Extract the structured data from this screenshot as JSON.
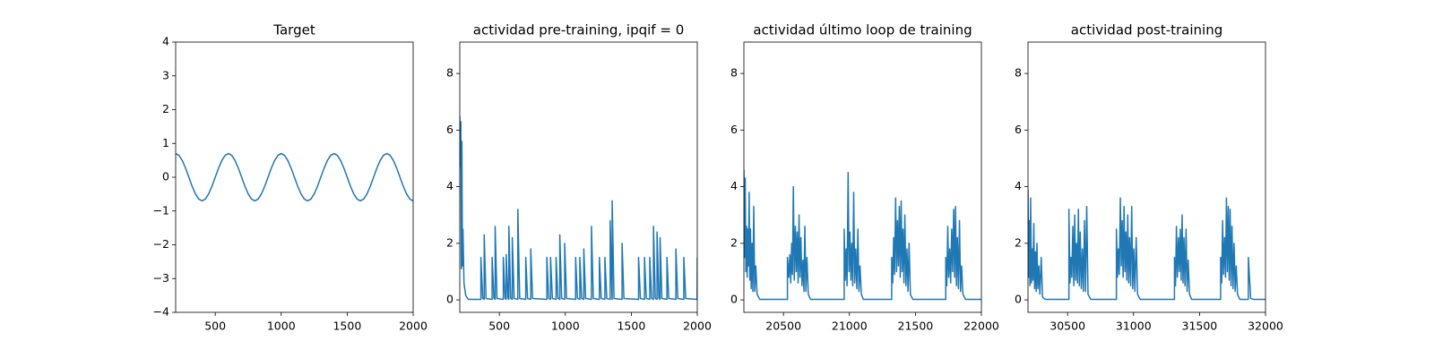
{
  "chart_data": [
    {
      "type": "line",
      "title": "Target",
      "x": [
        200,
        225,
        250,
        275,
        300,
        325,
        350,
        375,
        400,
        425,
        450,
        475,
        500,
        525,
        550,
        575,
        600,
        625,
        650,
        675,
        700,
        725,
        750,
        775,
        800,
        825,
        850,
        875,
        900,
        925,
        950,
        975,
        1000,
        1025,
        1050,
        1075,
        1100,
        1125,
        1150,
        1175,
        1200,
        1225,
        1250,
        1275,
        1300,
        1325,
        1350,
        1375,
        1400,
        1425,
        1450,
        1475,
        1500,
        1525,
        1550,
        1575,
        1600,
        1625,
        1650,
        1675,
        1700,
        1725,
        1750,
        1775,
        1800,
        1825,
        1850,
        1875,
        1900,
        1925,
        1950,
        1975,
        2000
      ],
      "series": [
        {
          "color": "#1f77b4",
          "values": [
            0.7,
            0.647,
            0.495,
            0.268,
            0,
            -0.268,
            -0.495,
            -0.647,
            -0.7,
            -0.647,
            -0.495,
            -0.268,
            0,
            0.268,
            0.495,
            0.647,
            0.7,
            0.647,
            0.495,
            0.268,
            0,
            -0.268,
            -0.495,
            -0.647,
            -0.7,
            -0.647,
            -0.495,
            -0.268,
            0,
            0.268,
            0.495,
            0.647,
            0.7,
            0.647,
            0.495,
            0.268,
            0,
            -0.268,
            -0.495,
            -0.647,
            -0.7,
            -0.647,
            -0.495,
            -0.268,
            0,
            0.268,
            0.495,
            0.647,
            0.7,
            0.647,
            0.495,
            0.268,
            0,
            -0.268,
            -0.495,
            -0.647,
            -0.7,
            -0.647,
            -0.495,
            -0.268,
            0,
            0.268,
            0.495,
            0.647,
            0.7,
            0.647,
            0.495,
            0.268,
            0,
            -0.268,
            -0.495,
            -0.647,
            -0.7
          ]
        }
      ],
      "xlim": [
        200,
        2000
      ],
      "ylim": [
        -4,
        4
      ],
      "xticks": [
        500,
        1000,
        1500,
        2000
      ],
      "yticks": [
        {
          "value": -4,
          "label": "−4"
        },
        {
          "value": -3,
          "label": "−3"
        },
        {
          "value": -2,
          "label": "−2"
        },
        {
          "value": -1,
          "label": "−1"
        },
        0,
        1,
        2,
        3,
        4
      ]
    },
    {
      "type": "line",
      "title": "actividad pre-training, ipqif = 0",
      "x": [
        200,
        204,
        208,
        212,
        216,
        220,
        224,
        232,
        245,
        265,
        360,
        360,
        374,
        385,
        385,
        399,
        445,
        445,
        459,
        468,
        468,
        482,
        530,
        530,
        544,
        552,
        552,
        566,
        572,
        572,
        586,
        598,
        598,
        612,
        640,
        640,
        654,
        700,
        700,
        714,
        738,
        738,
        752,
        860,
        860,
        874,
        888,
        888,
        902,
        930,
        930,
        944,
        958,
        958,
        972,
        995,
        995,
        1009,
        1078,
        1078,
        1092,
        1110,
        1110,
        1124,
        1140,
        1140,
        1154,
        1198,
        1198,
        1212,
        1258,
        1258,
        1272,
        1300,
        1300,
        1314,
        1340,
        1340,
        1354,
        1355,
        1355,
        1369,
        1430,
        1430,
        1444,
        1555,
        1555,
        1569,
        1600,
        1600,
        1614,
        1640,
        1640,
        1654,
        1668,
        1668,
        1682,
        1695,
        1695,
        1709,
        1718,
        1718,
        1732,
        1770,
        1770,
        1784,
        1838,
        1838,
        1852,
        1898,
        1898,
        1912,
        1999,
        2000
      ],
      "series": [
        {
          "color": "#1f77b4",
          "values": [
            6.5,
            4.7,
            6.3,
            1.1,
            5.6,
            1.2,
            2.5,
            0.6,
            0.15,
            0.02,
            0.02,
            1.5,
            0.05,
            0.02,
            2.3,
            0.05,
            0.02,
            1.5,
            0.05,
            0.02,
            2.6,
            0.05,
            0.02,
            1.5,
            0.05,
            0.02,
            1.6,
            0.05,
            0.02,
            2.6,
            0.05,
            0.02,
            2.2,
            0.05,
            0.02,
            3.2,
            0.05,
            0.02,
            1.5,
            0.05,
            0.02,
            1.8,
            0.05,
            0.02,
            1.5,
            0.05,
            0.02,
            1.5,
            0.05,
            0.02,
            1.5,
            0.05,
            0.02,
            2.3,
            0.05,
            0.02,
            2.0,
            0.05,
            0.02,
            1.5,
            0.05,
            0.02,
            1.5,
            0.05,
            0.02,
            1.8,
            0.05,
            0.02,
            2.6,
            0.05,
            0.02,
            1.5,
            0.05,
            0.02,
            1.5,
            0.05,
            0.02,
            2.8,
            0.05,
            0.02,
            3.5,
            0.05,
            0.02,
            2.0,
            0.05,
            0.02,
            1.5,
            0.05,
            0.02,
            1.5,
            0.05,
            0.02,
            1.5,
            0.05,
            0.02,
            2.6,
            0.05,
            0.02,
            2.4,
            0.05,
            0.02,
            2.2,
            0.05,
            0.02,
            1.5,
            0.05,
            0.02,
            1.8,
            0.05,
            0.02,
            1.5,
            0.05,
            0.02,
            1.5
          ]
        }
      ],
      "xlim": [
        200,
        2000
      ],
      "ylim": [
        -0.44,
        9.11
      ],
      "xticks": [
        500,
        1000,
        1500,
        2000
      ],
      "yticks": [
        0,
        2,
        4,
        6,
        8
      ]
    },
    {
      "type": "line",
      "title": "actividad último loop de training",
      "x": [
        20200,
        20205,
        20210,
        20215,
        20220,
        20225,
        20230,
        20235,
        20240,
        20245,
        20250,
        20255,
        20262,
        20268,
        20275,
        20282,
        20290,
        20300,
        20320,
        20530,
        20530,
        20540,
        20548,
        20555,
        20562,
        20568,
        20575,
        20582,
        20590,
        20597,
        20604,
        20611,
        20618,
        20625,
        20632,
        20640,
        20648,
        20655,
        20662,
        20670,
        20678,
        20688,
        20705,
        20960,
        20960,
        20968,
        20975,
        20982,
        20990,
        20997,
        21004,
        21011,
        21018,
        21025,
        21032,
        21040,
        21048,
        21056,
        21064,
        21072,
        21080,
        21090,
        21105,
        21320,
        21320,
        21328,
        21335,
        21342,
        21350,
        21357,
        21364,
        21371,
        21378,
        21385,
        21392,
        21399,
        21406,
        21413,
        21420,
        21428,
        21436,
        21444,
        21452,
        21462,
        21480,
        21730,
        21730,
        21738,
        21745,
        21752,
        21760,
        21767,
        21775,
        21782,
        21790,
        21797,
        21804,
        21811,
        21818,
        21826,
        21834,
        21842,
        21850,
        21860,
        21880,
        22000
      ],
      "series": [
        {
          "color": "#1f77b4",
          "values": [
            4.6,
            1.5,
            4.3,
            1.0,
            2.6,
            0.8,
            2.5,
            1.2,
            3.8,
            0.7,
            2.5,
            0.4,
            2.0,
            0.3,
            3.3,
            0.3,
            1.2,
            0.2,
            0.02,
            0.02,
            1.5,
            0.8,
            1.6,
            0.6,
            2.0,
            0.9,
            4.0,
            0.7,
            2.6,
            1.0,
            2.4,
            0.6,
            3.0,
            0.8,
            2.2,
            0.5,
            1.4,
            0.3,
            2.6,
            0.3,
            1.5,
            0.2,
            0.02,
            0.02,
            2.5,
            0.7,
            1.8,
            0.5,
            4.5,
            1.0,
            2.4,
            0.7,
            2.0,
            0.5,
            3.8,
            0.6,
            1.8,
            0.4,
            2.5,
            0.3,
            1.2,
            0.2,
            0.02,
            0.02,
            1.5,
            0.6,
            2.2,
            0.9,
            3.6,
            1.0,
            2.8,
            1.2,
            3.3,
            0.8,
            3.5,
            1.0,
            2.5,
            0.6,
            3.0,
            0.5,
            1.8,
            0.3,
            2.0,
            0.2,
            0.02,
            0.02,
            1.5,
            0.5,
            2.6,
            0.8,
            1.8,
            0.6,
            2.5,
            1.0,
            3.2,
            0.8,
            3.3,
            0.5,
            2.2,
            0.4,
            2.8,
            0.3,
            1.2,
            0.2,
            0.02,
            0.02
          ]
        }
      ],
      "xlim": [
        20200,
        22000
      ],
      "ylim": [
        -0.44,
        9.11
      ],
      "xticks": [
        20500,
        21000,
        21500,
        22000
      ],
      "yticks": [
        0,
        2,
        4,
        6,
        8
      ]
    },
    {
      "type": "line",
      "title": "actividad post-training",
      "x": [
        30200,
        30205,
        30210,
        30215,
        30220,
        30226,
        30232,
        30238,
        30244,
        30250,
        30256,
        30262,
        30268,
        30275,
        30282,
        30290,
        30300,
        30310,
        30330,
        30510,
        30510,
        30518,
        30525,
        30532,
        30540,
        30547,
        30554,
        30561,
        30568,
        30575,
        30582,
        30589,
        30596,
        30604,
        30612,
        30620,
        30628,
        30636,
        30645,
        30655,
        30675,
        30870,
        30870,
        30878,
        30885,
        30892,
        30900,
        30907,
        30914,
        30921,
        30928,
        30935,
        30942,
        30949,
        30956,
        30963,
        30970,
        30978,
        30986,
        30994,
        31002,
        31010,
        31020,
        31030,
        31050,
        31310,
        31310,
        31318,
        31325,
        31332,
        31340,
        31347,
        31354,
        31361,
        31368,
        31375,
        31382,
        31390,
        31398,
        31406,
        31414,
        31424,
        31440,
        31660,
        31660,
        31668,
        31675,
        31682,
        31690,
        31697,
        31704,
        31711,
        31718,
        31725,
        31732,
        31739,
        31746,
        31754,
        31762,
        31770,
        31778,
        31788,
        31805,
        31870,
        31870,
        31888,
        31910,
        32000
      ],
      "series": [
        {
          "color": "#1f77b4",
          "values": [
            3.9,
            0.8,
            2.8,
            0.5,
            3.6,
            0.6,
            1.8,
            0.7,
            2.7,
            0.4,
            1.7,
            0.3,
            2.0,
            0.4,
            1.2,
            0.2,
            1.5,
            0.1,
            0.02,
            0.02,
            3.2,
            0.6,
            1.5,
            0.8,
            2.6,
            0.5,
            3.0,
            0.7,
            2.0,
            0.6,
            3.2,
            0.5,
            2.4,
            0.4,
            1.8,
            0.3,
            2.8,
            0.3,
            3.3,
            0.2,
            0.02,
            0.02,
            2.5,
            0.8,
            1.8,
            0.9,
            3.6,
            1.2,
            2.8,
            0.8,
            3.3,
            1.0,
            2.4,
            0.7,
            3.0,
            0.6,
            2.2,
            0.5,
            3.3,
            0.4,
            1.8,
            0.3,
            2.2,
            0.2,
            0.02,
            0.02,
            1.5,
            0.5,
            2.6,
            0.8,
            2.2,
            1.0,
            2.5,
            0.7,
            3.0,
            0.6,
            2.2,
            0.5,
            2.5,
            0.3,
            1.4,
            0.2,
            0.02,
            0.02,
            1.5,
            0.6,
            2.8,
            0.9,
            2.2,
            0.8,
            3.6,
            1.0,
            3.3,
            0.7,
            3.2,
            0.5,
            2.6,
            0.4,
            2.0,
            0.3,
            1.2,
            0.2,
            0.02,
            0.02,
            1.5,
            0.05,
            0.02,
            0.02
          ]
        }
      ],
      "xlim": [
        30200,
        32000
      ],
      "ylim": [
        -0.44,
        9.11
      ],
      "xticks": [
        30500,
        31000,
        31500,
        32000
      ],
      "yticks": [
        0,
        2,
        4,
        6,
        8
      ]
    }
  ]
}
